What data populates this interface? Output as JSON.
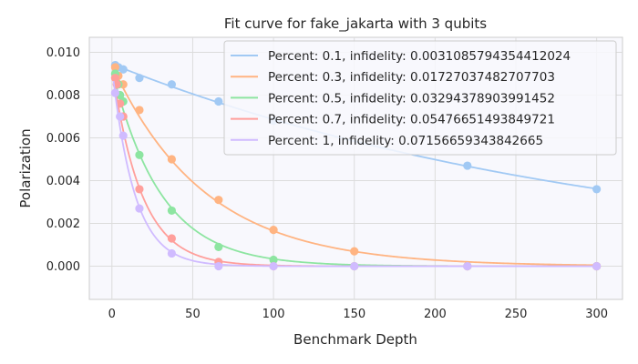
{
  "chart_data": {
    "type": "scatter",
    "title": "Fit curve for fake_jakarta with 3 qubits",
    "xlabel": "Benchmark Depth",
    "ylabel": "Polarization",
    "xlim": [
      -14,
      316
    ],
    "ylim": [
      -0.00155,
      0.0107
    ],
    "xticks": [
      0,
      50,
      100,
      150,
      200,
      250,
      300
    ],
    "xtick_labels": [
      "0",
      "50",
      "100",
      "150",
      "200",
      "250",
      "300"
    ],
    "yticks": [
      0,
      0.002,
      0.004,
      0.006,
      0.008,
      0.01
    ],
    "ytick_labels": [
      "0.000",
      "0.002",
      "0.004",
      "0.006",
      "0.008",
      "0.010"
    ],
    "grid": true,
    "legend_position": "top-right",
    "series": [
      {
        "name": "Percent: 0.1, infidelity: 0.0031085794354412024",
        "color": "#a1c9f4",
        "fit_amplitude": 0.00945,
        "fit_rate": 0.0032,
        "x": [
          2,
          4,
          7,
          17,
          37,
          66,
          100,
          220,
          300
        ],
        "y": [
          0.0094,
          0.0093,
          0.0092,
          0.0088,
          0.0085,
          0.0077,
          0.0068,
          0.0047,
          0.0036
        ]
      },
      {
        "name": "Percent: 0.3, infidelity: 0.01727037482707703",
        "color": "#ffb482",
        "fit_amplitude": 0.0094,
        "fit_rate": 0.0174,
        "x": [
          2,
          4,
          7,
          17,
          37,
          66,
          100,
          150,
          220,
          300
        ],
        "y": [
          0.0093,
          0.0089,
          0.0085,
          0.0073,
          0.005,
          0.0031,
          0.0017,
          0.0007,
          0.0,
          0.0
        ]
      },
      {
        "name": "Percent: 0.5, infidelity: 0.03294378903991452",
        "color": "#8de5a1",
        "fit_amplitude": 0.0092,
        "fit_rate": 0.033,
        "x": [
          2,
          4,
          5,
          7,
          17,
          37,
          66,
          100,
          150,
          220,
          300
        ],
        "y": [
          0.009,
          0.0085,
          0.008,
          0.0077,
          0.0052,
          0.0026,
          0.0009,
          0.0003,
          0.0,
          0.0,
          0.0
        ]
      },
      {
        "name": "Percent: 0.7, infidelity: 0.05476651493849721",
        "color": "#ff9f9b",
        "fit_amplitude": 0.0093,
        "fit_rate": 0.055,
        "x": [
          2,
          3,
          5,
          7,
          17,
          37,
          66,
          100,
          150,
          220,
          300
        ],
        "y": [
          0.0088,
          0.0085,
          0.0076,
          0.007,
          0.0036,
          0.0013,
          0.0002,
          0.0,
          0.0,
          0.0,
          0.0
        ]
      },
      {
        "name": "Percent: 1, infidelity: 0.07156659343842665",
        "color": "#d0bbff",
        "fit_amplitude": 0.0093,
        "fit_rate": 0.0716,
        "x": [
          2,
          5,
          7,
          17,
          37,
          66,
          100,
          150,
          220,
          300
        ],
        "y": [
          0.0081,
          0.007,
          0.0061,
          0.0027,
          0.0006,
          0.0,
          0.0,
          0.0,
          0.0,
          0.0
        ]
      }
    ]
  }
}
